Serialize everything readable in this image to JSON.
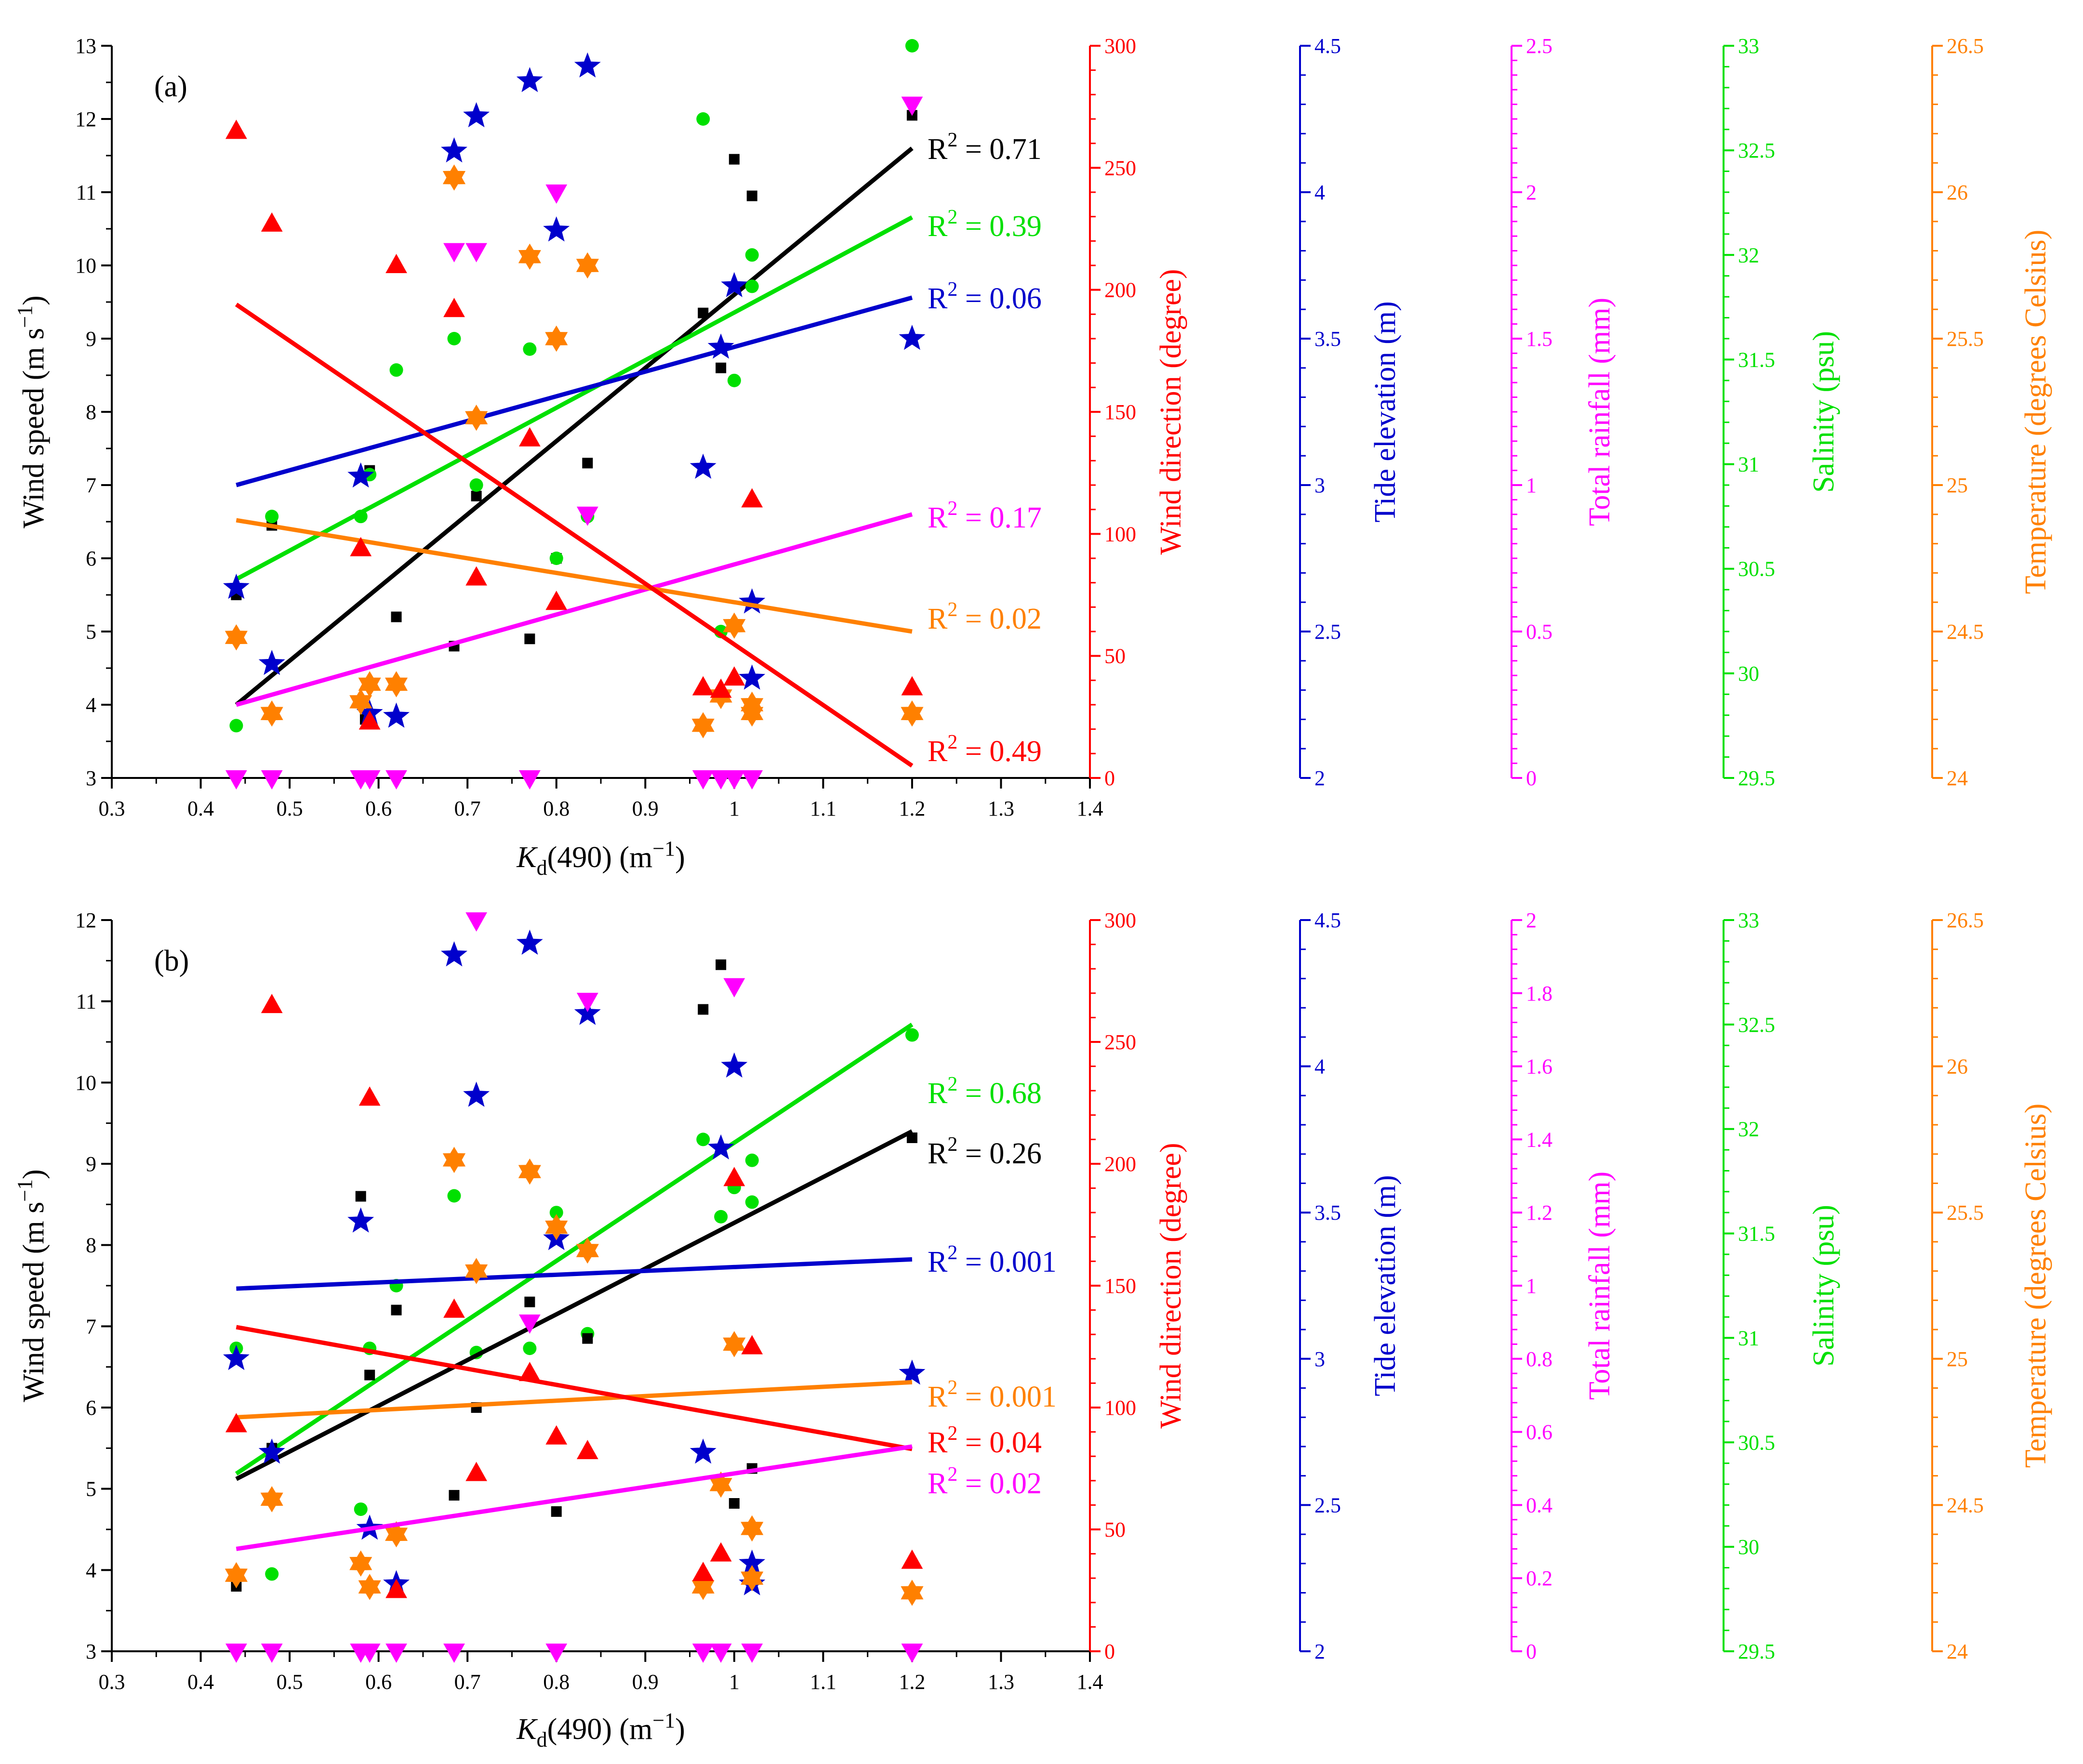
{
  "chart_data": {
    "type": "scatter",
    "shared_x_axis": {
      "label": "K",
      "label_sub": "d",
      "label_rest": "(490) (m",
      "label_sup": "−1",
      "label_close": ")",
      "xlim": [
        0.3,
        1.4
      ],
      "ticks": [
        "0.3",
        "0.4",
        "0.5",
        "0.6",
        "0.7",
        "0.8",
        "0.9",
        "1",
        "1.1",
        "1.2",
        "1.3",
        "1.4"
      ]
    },
    "colors": {
      "wind_speed": "#000000",
      "wind_direction": "#ff0000",
      "tide": "#0000cc",
      "rainfall": "#ff00ff",
      "salinity": "#00e000",
      "temperature": "#ff8000"
    },
    "panels": [
      {
        "id": "a",
        "panel_label": "(a)",
        "axes": {
          "wind_speed": {
            "label": "Wind speed (m s",
            "label_sup": "−1",
            "label_close": ")",
            "ylim": [
              3,
              13
            ],
            "ticks": [
              "3",
              "4",
              "5",
              "6",
              "7",
              "8",
              "9",
              "10",
              "11",
              "12",
              "13"
            ]
          },
          "wind_direction": {
            "label": "Wind direction (degree)",
            "ylim": [
              0,
              300
            ],
            "ticks": [
              "0",
              "50",
              "100",
              "150",
              "200",
              "250",
              "300"
            ]
          },
          "tide": {
            "label": "Tide elevation (m)",
            "ylim": [
              2,
              4.5
            ],
            "ticks": [
              "2",
              "2.5",
              "3",
              "3.5",
              "4",
              "4.5"
            ]
          },
          "rainfall": {
            "label": "Total rainfall (mm)",
            "ylim": [
              0,
              2.5
            ],
            "ticks": [
              "0",
              "0.5",
              "1",
              "1.5",
              "2",
              "2.5"
            ]
          },
          "salinity": {
            "label": "Salinity (psu)",
            "ylim": [
              29.5,
              33
            ],
            "ticks": [
              "29.5",
              "30",
              "30.5",
              "31",
              "31.5",
              "32",
              "32.5",
              "33"
            ]
          },
          "temperature": {
            "label": "Temperature (degrees Celsius)",
            "ylim": [
              24,
              26.5
            ],
            "ticks": [
              "24",
              "24.5",
              "25",
              "25.5",
              "26",
              "26.5"
            ]
          }
        },
        "series": [
          {
            "name": "Wind speed",
            "var": "wind_speed",
            "marker": "square",
            "x": [
              0.44,
              0.48,
              0.585,
              0.59,
              0.62,
              0.685,
              0.71,
              0.77,
              0.8,
              0.835,
              0.965,
              0.985,
              1.0,
              1.02,
              1.2
            ],
            "y": [
              5.5,
              6.45,
              3.8,
              7.2,
              5.2,
              4.8,
              6.85,
              4.9,
              6.0,
              7.3,
              9.35,
              8.6,
              11.45,
              10.95,
              12.05
            ],
            "fit": {
              "x": [
                0.44,
                1.2
              ],
              "y": [
                4.0,
                11.6
              ]
            },
            "r2_label": "R",
            "r2_sup": "2",
            "r2_value": " = 0.71"
          },
          {
            "name": "Salinity",
            "var": "salinity",
            "marker": "circle",
            "x": [
              0.44,
              0.48,
              0.58,
              0.59,
              0.62,
              0.685,
              0.71,
              0.77,
              0.8,
              0.835,
              0.965,
              0.985,
              1.0,
              1.02,
              1.02,
              1.2
            ],
            "y": [
              29.75,
              30.75,
              30.75,
              30.95,
              31.45,
              31.6,
              30.9,
              31.55,
              30.55,
              30.75,
              32.65,
              30.2,
              31.4,
              32.0,
              31.85,
              33.0
            ],
            "fit": {
              "x": [
                0.44,
                1.2
              ],
              "y": [
                30.45,
                32.18
              ]
            },
            "r2_label": "R",
            "r2_sup": "2",
            "r2_value": " = 0.39"
          },
          {
            "name": "Tide elevation",
            "var": "tide",
            "marker": "star",
            "x": [
              0.44,
              0.48,
              0.58,
              0.59,
              0.62,
              0.685,
              0.71,
              0.77,
              0.8,
              0.835,
              0.965,
              0.985,
              1.0,
              1.02,
              1.02,
              1.2
            ],
            "y": [
              2.65,
              2.39,
              3.03,
              2.22,
              2.21,
              4.14,
              4.26,
              4.38,
              3.87,
              4.43,
              3.06,
              3.47,
              3.68,
              2.6,
              2.34,
              3.5
            ],
            "fit": {
              "x": [
                0.44,
                1.2
              ],
              "y": [
                3.0,
                3.64
              ]
            },
            "r2_label": "R",
            "r2_sup": "2",
            "r2_value": " = 0.06"
          },
          {
            "name": "Total rainfall",
            "var": "rainfall",
            "marker": "triangle-down",
            "x": [
              0.44,
              0.48,
              0.58,
              0.59,
              0.62,
              0.685,
              0.71,
              0.77,
              0.8,
              0.835,
              0.965,
              0.985,
              1.0,
              1.02,
              1.2
            ],
            "y": [
              0,
              0,
              0,
              0,
              0,
              1.8,
              1.8,
              0,
              2.0,
              0.9,
              0,
              0,
              0,
              0,
              2.3
            ],
            "fit": {
              "x": [
                0.44,
                1.2
              ],
              "y": [
                0.25,
                0.9
              ]
            },
            "r2_label": "R",
            "r2_sup": "2",
            "r2_value": " = 0.17"
          },
          {
            "name": "Temperature",
            "var": "temperature",
            "marker": "hexstar",
            "x": [
              0.44,
              0.48,
              0.58,
              0.59,
              0.62,
              0.685,
              0.71,
              0.77,
              0.8,
              0.835,
              0.965,
              0.985,
              1.0,
              1.02,
              1.02,
              1.2
            ],
            "y": [
              24.48,
              24.22,
              24.26,
              24.32,
              24.32,
              26.05,
              25.23,
              25.78,
              25.5,
              25.75,
              24.18,
              24.28,
              24.52,
              24.25,
              24.22,
              24.22
            ],
            "fit": {
              "x": [
                0.44,
                1.2
              ],
              "y": [
                24.88,
                24.5
              ]
            },
            "r2_label": "R",
            "r2_sup": "2",
            "r2_value": " = 0.02"
          },
          {
            "name": "Wind direction",
            "var": "wind_direction",
            "marker": "triangle-up",
            "x": [
              0.44,
              0.48,
              0.58,
              0.59,
              0.685,
              0.62,
              0.71,
              0.77,
              0.8,
              0.965,
              0.985,
              1.0,
              1.02,
              1.2
            ],
            "y": [
              265,
              227,
              94,
              23,
              192,
              210,
              82,
              139,
              72,
              37,
              36,
              41,
              114,
              37
            ],
            "fit": {
              "x": [
                0.44,
                1.2
              ],
              "y": [
                194,
                5
              ]
            },
            "r2_label": "R",
            "r2_sup": "2",
            "r2_value": " = 0.49"
          }
        ]
      },
      {
        "id": "b",
        "panel_label": "(b)",
        "axes": {
          "wind_speed": {
            "label": "Wind speed (m s",
            "label_sup": "−1",
            "label_close": ")",
            "ylim": [
              3,
              12
            ],
            "ticks": [
              "3",
              "4",
              "5",
              "6",
              "7",
              "8",
              "9",
              "10",
              "11",
              "12"
            ]
          },
          "wind_direction": {
            "label": "Wind direction (degree)",
            "ylim": [
              0,
              300
            ],
            "ticks": [
              "0",
              "50",
              "100",
              "150",
              "200",
              "250",
              "300"
            ]
          },
          "tide": {
            "label": "Tide elevation (m)",
            "ylim": [
              2,
              4.5
            ],
            "ticks": [
              "2",
              "2.5",
              "3",
              "3.5",
              "4",
              "4.5"
            ]
          },
          "rainfall": {
            "label": "Total rainfall (mm)",
            "ylim": [
              0,
              2
            ],
            "ticks": [
              "0",
              "0.2",
              "0.4",
              "0.6",
              "0.8",
              "1",
              "1.2",
              "1.4",
              "1.6",
              "1.8",
              "2"
            ]
          },
          "salinity": {
            "label": "Salinity (psu)",
            "ylim": [
              29.5,
              33
            ],
            "ticks": [
              "29.5",
              "30",
              "30.5",
              "31",
              "31.5",
              "32",
              "32.5",
              "33"
            ]
          },
          "temperature": {
            "label": "Temperature (degrees Celsius)",
            "ylim": [
              24,
              26.5
            ],
            "ticks": [
              "24",
              "24.5",
              "25",
              "25.5",
              "26",
              "26.5"
            ]
          }
        },
        "series": [
          {
            "name": "Salinity",
            "var": "salinity",
            "marker": "circle",
            "x": [
              0.44,
              0.48,
              0.58,
              0.59,
              0.62,
              0.685,
              0.71,
              0.77,
              0.8,
              0.835,
              0.965,
              0.985,
              1.0,
              1.02,
              1.02,
              1.2
            ],
            "y": [
              30.95,
              29.87,
              30.18,
              30.95,
              31.25,
              31.68,
              30.93,
              30.95,
              31.6,
              31.02,
              31.95,
              31.58,
              31.72,
              31.85,
              31.65,
              32.45
            ],
            "fit": {
              "x": [
                0.44,
                1.2
              ],
              "y": [
                30.35,
                32.5
              ]
            },
            "r2_label": "R",
            "r2_sup": "2",
            "r2_value": " = 0.68"
          },
          {
            "name": "Wind speed",
            "var": "wind_speed",
            "marker": "square",
            "x": [
              0.44,
              0.48,
              0.58,
              0.59,
              0.62,
              0.685,
              0.71,
              0.77,
              0.8,
              0.835,
              0.965,
              0.985,
              1.0,
              1.02,
              1.2
            ],
            "y": [
              3.8,
              5.5,
              8.6,
              6.4,
              7.2,
              4.92,
              6.0,
              7.3,
              4.72,
              6.85,
              10.9,
              11.45,
              4.82,
              5.25,
              9.32
            ],
            "fit": {
              "x": [
                0.44,
                1.2
              ],
              "y": [
                5.12,
                9.4
              ]
            },
            "r2_label": "R",
            "r2_sup": "2",
            "r2_value": " = 0.26"
          },
          {
            "name": "Tide elevation",
            "var": "tide",
            "marker": "star",
            "x": [
              0.44,
              0.48,
              0.58,
              0.59,
              0.62,
              0.685,
              0.71,
              0.77,
              0.8,
              0.835,
              0.965,
              0.985,
              1.0,
              1.02,
              1.02,
              1.2
            ],
            "y": [
              3.0,
              2.68,
              3.47,
              2.42,
              2.23,
              4.38,
              3.9,
              4.42,
              3.41,
              4.18,
              2.68,
              3.72,
              4.0,
              2.3,
              2.23,
              2.95
            ],
            "fit": {
              "x": [
                0.44,
                1.2
              ],
              "y": [
                3.24,
                3.34
              ]
            },
            "r2_label": "R",
            "r2_sup": "2",
            "r2_value": " = 0.001"
          },
          {
            "name": "Temperature",
            "var": "temperature",
            "marker": "hexstar",
            "x": [
              0.44,
              0.48,
              0.58,
              0.59,
              0.62,
              0.685,
              0.71,
              0.77,
              0.8,
              0.835,
              0.965,
              0.985,
              1.0,
              1.02,
              1.02,
              1.2
            ],
            "y": [
              24.26,
              24.52,
              24.3,
              24.22,
              24.4,
              25.68,
              25.3,
              25.64,
              25.45,
              25.37,
              24.22,
              24.57,
              25.05,
              24.42,
              24.25,
              24.2
            ],
            "fit": {
              "x": [
                0.44,
                1.2
              ],
              "y": [
                24.8,
                24.92
              ]
            },
            "r2_label": "R",
            "r2_sup": "2",
            "r2_value": " = 0.001"
          },
          {
            "name": "Wind direction",
            "var": "wind_direction",
            "marker": "triangle-up",
            "x": [
              0.44,
              0.48,
              0.59,
              0.62,
              0.685,
              0.71,
              0.77,
              0.8,
              0.835,
              0.965,
              0.985,
              1.0,
              1.02,
              1.2
            ],
            "y": [
              93,
              265,
              227,
              25,
              140,
              73,
              114,
              88,
              82,
              32,
              40,
              194,
              125,
              37
            ],
            "fit": {
              "x": [
                0.44,
                1.2
              ],
              "y": [
                133,
                83
              ]
            },
            "r2_label": "R",
            "r2_sup": "2",
            "r2_value": " = 0.04"
          },
          {
            "name": "Total rainfall",
            "var": "rainfall",
            "marker": "triangle-down",
            "x": [
              0.44,
              0.48,
              0.58,
              0.59,
              0.62,
              0.685,
              0.71,
              0.77,
              0.8,
              0.835,
              0.965,
              0.985,
              1.0,
              1.02,
              1.2
            ],
            "y": [
              0,
              0,
              0,
              0,
              0,
              0,
              2.0,
              0.9,
              0,
              1.78,
              0,
              0,
              1.82,
              0,
              0
            ],
            "fit": {
              "x": [
                0.44,
                1.2
              ],
              "y": [
                0.28,
                0.56
              ]
            },
            "r2_label": "R",
            "r2_sup": "2",
            "r2_value": " = 0.02"
          }
        ]
      }
    ]
  }
}
